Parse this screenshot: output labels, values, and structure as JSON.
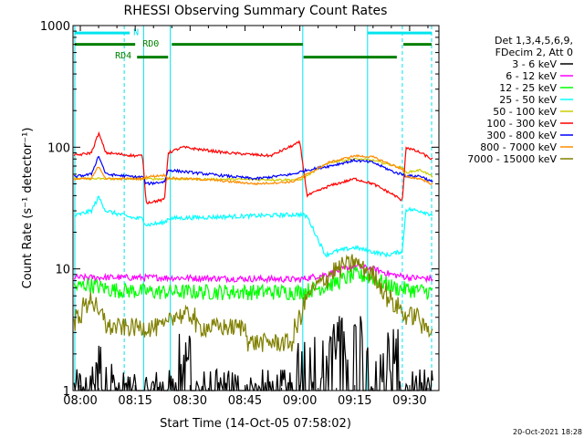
{
  "chart_data": {
    "type": "line",
    "title": "RHESSI Observing Summary Count Rates",
    "xlabel": "Start Time (14-Oct-05 07:58:02)",
    "ylabel": "Count Rate (s⁻¹ detector⁻¹)",
    "yscale": "log",
    "ylim": [
      1,
      1000
    ],
    "xlim_minutes_after_0800": [
      -2,
      98
    ],
    "x_ticks": [
      {
        "label": "08:00",
        "min": 0
      },
      {
        "label": "08:15",
        "min": 15
      },
      {
        "label": "08:30",
        "min": 30
      },
      {
        "label": "08:45",
        "min": 45
      },
      {
        "label": "09:00",
        "min": 60
      },
      {
        "label": "09:15",
        "min": 75
      },
      {
        "label": "09:30",
        "min": 90
      }
    ],
    "y_ticks": [
      {
        "label": "1",
        "value": 1
      },
      {
        "label": "10",
        "value": 10
      },
      {
        "label": "100",
        "value": 100
      },
      {
        "label": "1000",
        "value": 1000
      }
    ],
    "legend_header": [
      "Det 1,3,4,5,6,9,",
      "FDecim 2, Att 0"
    ],
    "legend_placement": "right",
    "series": [
      {
        "name": "3 - 6 keV",
        "color": "#000000",
        "noise": 0.5,
        "spiky": true,
        "points": [
          [
            -2,
            1
          ],
          [
            2,
            1
          ],
          [
            3,
            1.7
          ],
          [
            8,
            1.7
          ],
          [
            9,
            1
          ],
          [
            25,
            1
          ],
          [
            26,
            2.3
          ],
          [
            30,
            2.3
          ],
          [
            31,
            1
          ],
          [
            58,
            1
          ],
          [
            60,
            2.3
          ],
          [
            66,
            2.3
          ],
          [
            67,
            1
          ],
          [
            68,
            2.8
          ],
          [
            78,
            2.8
          ],
          [
            80,
            1
          ],
          [
            84,
            2.3
          ],
          [
            87,
            2.3
          ],
          [
            88,
            1
          ],
          [
            98,
            1
          ]
        ]
      },
      {
        "name": "6 - 12 keV",
        "color": "#ff00ff",
        "noise": 0.06,
        "points": [
          [
            -2,
            8.5
          ],
          [
            20,
            8.5
          ],
          [
            60,
            8.2
          ],
          [
            67,
            9
          ],
          [
            72,
            10
          ],
          [
            75,
            10.5
          ],
          [
            80,
            10
          ],
          [
            85,
            9
          ],
          [
            90,
            8.5
          ],
          [
            96,
            8.3
          ]
        ]
      },
      {
        "name": "12 - 25 keV",
        "color": "#00ff00",
        "noise": 0.15,
        "points": [
          [
            -2,
            7
          ],
          [
            2,
            7.5
          ],
          [
            8,
            6.8
          ],
          [
            20,
            6.5
          ],
          [
            60,
            6.5
          ],
          [
            67,
            7.2
          ],
          [
            75,
            9
          ],
          [
            80,
            8.5
          ],
          [
            86,
            7
          ],
          [
            90,
            6.8
          ],
          [
            96,
            6.5
          ]
        ]
      },
      {
        "name": "25 - 50 keV",
        "color": "#00ffff",
        "noise": 0.04,
        "points": [
          [
            -2,
            27
          ],
          [
            3,
            30
          ],
          [
            5,
            39
          ],
          [
            7,
            30
          ],
          [
            15,
            26
          ],
          [
            17,
            26
          ],
          [
            18,
            23
          ],
          [
            23,
            24
          ],
          [
            24,
            26
          ],
          [
            60,
            28
          ],
          [
            62,
            27
          ],
          [
            67,
            13
          ],
          [
            70,
            14
          ],
          [
            75,
            15
          ],
          [
            79,
            14
          ],
          [
            84,
            13
          ],
          [
            88,
            14
          ],
          [
            89,
            31
          ],
          [
            93,
            30
          ],
          [
            96,
            28
          ]
        ]
      },
      {
        "name": "50 - 100 keV",
        "color": "#cccc00",
        "noise": 0.02,
        "points": [
          [
            -2,
            55
          ],
          [
            20,
            55
          ],
          [
            60,
            54
          ],
          [
            68,
            75
          ],
          [
            75,
            80
          ],
          [
            80,
            78
          ],
          [
            86,
            70
          ],
          [
            88,
            68
          ],
          [
            89,
            62
          ],
          [
            93,
            65
          ],
          [
            96,
            58
          ]
        ]
      },
      {
        "name": "100 - 300 keV",
        "color": "#ff0000",
        "noise": 0.025,
        "points": [
          [
            -2,
            85
          ],
          [
            3,
            90
          ],
          [
            5,
            130
          ],
          [
            7,
            90
          ],
          [
            15,
            85
          ],
          [
            17,
            85
          ],
          [
            18,
            35
          ],
          [
            23,
            37
          ],
          [
            24,
            90
          ],
          [
            28,
            100
          ],
          [
            40,
            90
          ],
          [
            52,
            85
          ],
          [
            60,
            110
          ],
          [
            62,
            40
          ],
          [
            68,
            48
          ],
          [
            75,
            55
          ],
          [
            80,
            50
          ],
          [
            86,
            40
          ],
          [
            88,
            36
          ],
          [
            89,
            100
          ],
          [
            93,
            90
          ],
          [
            96,
            80
          ]
        ]
      },
      {
        "name": "300 - 800 keV",
        "color": "#0000ff",
        "noise": 0.025,
        "points": [
          [
            -2,
            57
          ],
          [
            3,
            60
          ],
          [
            5,
            85
          ],
          [
            7,
            60
          ],
          [
            15,
            57
          ],
          [
            17,
            57
          ],
          [
            18,
            50
          ],
          [
            23,
            52
          ],
          [
            24,
            65
          ],
          [
            35,
            60
          ],
          [
            48,
            55
          ],
          [
            58,
            60
          ],
          [
            62,
            65
          ],
          [
            68,
            70
          ],
          [
            75,
            78
          ],
          [
            80,
            75
          ],
          [
            86,
            62
          ],
          [
            88,
            60
          ],
          [
            89,
            58
          ],
          [
            93,
            58
          ],
          [
            96,
            52
          ]
        ]
      },
      {
        "name": "800 - 7000 keV",
        "color": "#ff8c00",
        "noise": 0.02,
        "points": [
          [
            -2,
            55
          ],
          [
            3,
            55
          ],
          [
            5,
            70
          ],
          [
            7,
            55
          ],
          [
            15,
            55
          ],
          [
            17,
            55
          ],
          [
            18,
            57
          ],
          [
            23,
            59
          ],
          [
            24,
            56
          ],
          [
            35,
            54
          ],
          [
            48,
            50
          ],
          [
            58,
            52
          ],
          [
            62,
            60
          ],
          [
            68,
            75
          ],
          [
            75,
            85
          ],
          [
            80,
            83
          ],
          [
            86,
            70
          ],
          [
            88,
            66
          ],
          [
            89,
            57
          ],
          [
            93,
            55
          ],
          [
            96,
            50
          ]
        ]
      },
      {
        "name": "7000 - 15000 keV",
        "color": "#808000",
        "noise": 0.18,
        "steppy": true,
        "points": [
          [
            -2,
            3.5
          ],
          [
            3,
            6
          ],
          [
            5,
            4
          ],
          [
            9,
            3.5
          ],
          [
            14,
            3.5
          ],
          [
            20,
            3
          ],
          [
            27,
            4.5
          ],
          [
            33,
            3.5
          ],
          [
            45,
            3
          ],
          [
            52,
            2.2
          ],
          [
            58,
            2.7
          ],
          [
            62,
            6
          ],
          [
            66,
            8
          ],
          [
            70,
            10
          ],
          [
            75,
            11.5
          ],
          [
            80,
            9
          ],
          [
            86,
            5
          ],
          [
            90,
            4
          ],
          [
            96,
            3.5
          ]
        ]
      }
    ],
    "vertical_markers": [
      {
        "min": -1.5,
        "color": "#00e5ee",
        "style": "solid"
      },
      {
        "min": 12,
        "color": "#00e5ee",
        "style": "dash"
      },
      {
        "min": 17.3,
        "color": "#00e5ee",
        "style": "solid"
      },
      {
        "min": 24.6,
        "color": "#00e5ee",
        "style": "solid"
      },
      {
        "min": 60.8,
        "color": "#00e5ee",
        "style": "solid"
      },
      {
        "min": 78.5,
        "color": "#00e5ee",
        "style": "solid"
      },
      {
        "min": 88,
        "color": "#00e5ee",
        "style": "dash"
      },
      {
        "min": 96,
        "color": "#00e5ee",
        "style": "dash"
      }
    ],
    "flag_bars": [
      {
        "color": "#00e5ee",
        "value": 870,
        "spans": [
          [
            -1.5,
            13.5
          ],
          [
            78.5,
            96
          ]
        ]
      },
      {
        "color": "#008000",
        "value": 700,
        "spans": [
          [
            -1.5,
            15
          ],
          [
            25,
            60.8
          ],
          [
            88.3,
            96
          ]
        ]
      },
      {
        "color": "#008000",
        "value": 550,
        "spans": [
          [
            15.5,
            24
          ],
          [
            61,
            86.5
          ]
        ]
      }
    ],
    "flag_labels": [
      {
        "text": "N",
        "min": 14.5,
        "value": 880,
        "color": "#00e5ee"
      },
      {
        "text": "RD0",
        "min": 17,
        "value": 710,
        "color": "#008000"
      },
      {
        "text": "RD4",
        "min": 9.5,
        "value": 565,
        "color": "#008000"
      }
    ]
  },
  "footer": {
    "timestamp": "20-Oct-2021 18:28"
  }
}
